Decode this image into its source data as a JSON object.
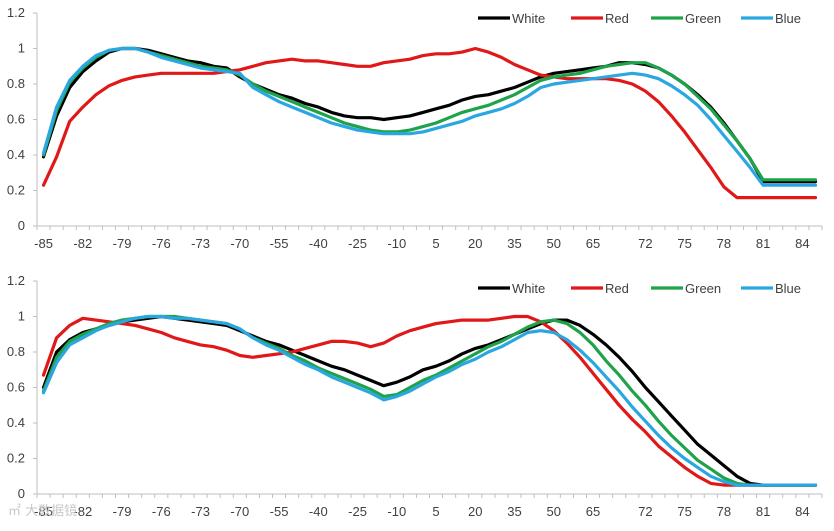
{
  "chart_data": [
    {
      "type": "line",
      "x": [
        "-85",
        "-84",
        "-83",
        "-82",
        "-81",
        "-80",
        "-79",
        "-78",
        "-77",
        "-76",
        "-75",
        "-74",
        "-73",
        "-72",
        "-71",
        "-70",
        "-65",
        "-60",
        "-55",
        "-50",
        "-45",
        "-40",
        "-35",
        "-30",
        "-25",
        "-20",
        "-15",
        "-10",
        "-5",
        "0",
        "5",
        "10",
        "15",
        "20",
        "25",
        "30",
        "35",
        "40",
        "45",
        "50",
        "55",
        "60",
        "65",
        "68",
        "70",
        "71",
        "72",
        "73",
        "74",
        "75",
        "76",
        "77",
        "78",
        "79",
        "80",
        "81",
        "82",
        "83",
        "84",
        "85"
      ],
      "tick_labels": [
        "-85",
        "-82",
        "-79",
        "-76",
        "-73",
        "-70",
        "-55",
        "-40",
        "-25",
        "-10",
        "5",
        "20",
        "35",
        "50",
        "65",
        "72",
        "75",
        "78",
        "81",
        "84"
      ],
      "ylim": [
        0,
        1.2
      ],
      "yticks": [
        "0",
        "0.2",
        "0.4",
        "0.6",
        "0.8",
        "1",
        "1.2"
      ],
      "series": [
        {
          "name": "White",
          "color": "#000000",
          "values": [
            0.39,
            0.62,
            0.78,
            0.87,
            0.93,
            0.98,
            1.0,
            1.0,
            0.99,
            0.97,
            0.95,
            0.93,
            0.92,
            0.9,
            0.89,
            0.84,
            0.8,
            0.77,
            0.74,
            0.72,
            0.69,
            0.67,
            0.64,
            0.62,
            0.61,
            0.61,
            0.6,
            0.61,
            0.62,
            0.64,
            0.66,
            0.68,
            0.71,
            0.73,
            0.74,
            0.76,
            0.78,
            0.81,
            0.84,
            0.86,
            0.87,
            0.88,
            0.89,
            0.9,
            0.92,
            0.92,
            0.91,
            0.89,
            0.85,
            0.8,
            0.74,
            0.67,
            0.58,
            0.48,
            0.38,
            0.25,
            0.25,
            0.25,
            0.25,
            0.25
          ]
        },
        {
          "name": "Red",
          "color": "#e01818",
          "values": [
            0.23,
            0.39,
            0.59,
            0.67,
            0.74,
            0.79,
            0.82,
            0.84,
            0.85,
            0.86,
            0.86,
            0.86,
            0.86,
            0.86,
            0.87,
            0.88,
            0.9,
            0.92,
            0.93,
            0.94,
            0.93,
            0.93,
            0.92,
            0.91,
            0.9,
            0.9,
            0.92,
            0.93,
            0.94,
            0.96,
            0.97,
            0.97,
            0.98,
            1.0,
            0.98,
            0.95,
            0.91,
            0.88,
            0.85,
            0.84,
            0.83,
            0.83,
            0.83,
            0.83,
            0.82,
            0.8,
            0.76,
            0.7,
            0.62,
            0.53,
            0.43,
            0.33,
            0.22,
            0.16,
            0.16,
            0.16,
            0.16,
            0.16,
            0.16,
            0.16
          ]
        },
        {
          "name": "Green",
          "color": "#1fa34a",
          "values": [
            0.4,
            0.65,
            0.81,
            0.89,
            0.95,
            0.99,
            1.0,
            1.0,
            0.98,
            0.96,
            0.94,
            0.92,
            0.9,
            0.89,
            0.88,
            0.85,
            0.8,
            0.76,
            0.73,
            0.7,
            0.67,
            0.64,
            0.61,
            0.58,
            0.56,
            0.54,
            0.53,
            0.53,
            0.54,
            0.56,
            0.58,
            0.61,
            0.64,
            0.66,
            0.68,
            0.71,
            0.74,
            0.78,
            0.82,
            0.84,
            0.85,
            0.86,
            0.88,
            0.9,
            0.91,
            0.92,
            0.92,
            0.89,
            0.85,
            0.8,
            0.73,
            0.66,
            0.57,
            0.48,
            0.38,
            0.26,
            0.26,
            0.26,
            0.26,
            0.26
          ]
        },
        {
          "name": "Blue",
          "color": "#2aa7e0",
          "values": [
            0.41,
            0.67,
            0.82,
            0.9,
            0.96,
            0.99,
            1.0,
            1.0,
            0.98,
            0.95,
            0.93,
            0.91,
            0.89,
            0.88,
            0.87,
            0.86,
            0.78,
            0.74,
            0.7,
            0.67,
            0.64,
            0.61,
            0.58,
            0.56,
            0.54,
            0.53,
            0.52,
            0.52,
            0.52,
            0.53,
            0.55,
            0.57,
            0.59,
            0.62,
            0.64,
            0.66,
            0.69,
            0.73,
            0.78,
            0.8,
            0.81,
            0.82,
            0.83,
            0.84,
            0.85,
            0.86,
            0.85,
            0.83,
            0.79,
            0.74,
            0.68,
            0.6,
            0.51,
            0.42,
            0.33,
            0.23,
            0.23,
            0.23,
            0.23,
            0.23
          ]
        }
      ],
      "legend_position": "top-right"
    },
    {
      "type": "line",
      "x": [
        "-85",
        "-84",
        "-83",
        "-82",
        "-81",
        "-80",
        "-79",
        "-78",
        "-77",
        "-76",
        "-75",
        "-74",
        "-73",
        "-72",
        "-71",
        "-70",
        "-65",
        "-60",
        "-55",
        "-50",
        "-45",
        "-40",
        "-35",
        "-30",
        "-25",
        "-20",
        "-15",
        "-10",
        "-5",
        "0",
        "5",
        "10",
        "15",
        "20",
        "25",
        "30",
        "35",
        "40",
        "45",
        "50",
        "55",
        "60",
        "65",
        "68",
        "70",
        "71",
        "72",
        "73",
        "74",
        "75",
        "76",
        "77",
        "78",
        "79",
        "80",
        "81",
        "82",
        "83",
        "84",
        "85"
      ],
      "tick_labels": [
        "-85",
        "-82",
        "-79",
        "-76",
        "-73",
        "-70",
        "-55",
        "-40",
        "-25",
        "-10",
        "5",
        "20",
        "35",
        "50",
        "65",
        "72",
        "75",
        "78",
        "81",
        "84"
      ],
      "ylim": [
        0,
        1.2
      ],
      "yticks": [
        "0",
        "0.2",
        "0.4",
        "0.6",
        "0.8",
        "1",
        "1.2"
      ],
      "series": [
        {
          "name": "White",
          "color": "#000000",
          "values": [
            0.6,
            0.8,
            0.87,
            0.91,
            0.93,
            0.95,
            0.97,
            0.98,
            0.99,
            1.0,
            0.99,
            0.98,
            0.97,
            0.96,
            0.95,
            0.92,
            0.89,
            0.86,
            0.84,
            0.81,
            0.78,
            0.75,
            0.72,
            0.7,
            0.67,
            0.64,
            0.61,
            0.63,
            0.66,
            0.7,
            0.72,
            0.75,
            0.79,
            0.82,
            0.84,
            0.87,
            0.9,
            0.93,
            0.96,
            0.98,
            0.98,
            0.95,
            0.9,
            0.84,
            0.77,
            0.69,
            0.6,
            0.52,
            0.44,
            0.36,
            0.28,
            0.22,
            0.16,
            0.1,
            0.06,
            0.05,
            0.05,
            0.05,
            0.05,
            0.05
          ]
        },
        {
          "name": "Red",
          "color": "#e01818",
          "values": [
            0.67,
            0.88,
            0.95,
            0.99,
            0.98,
            0.97,
            0.96,
            0.95,
            0.93,
            0.91,
            0.88,
            0.86,
            0.84,
            0.83,
            0.81,
            0.78,
            0.77,
            0.78,
            0.79,
            0.8,
            0.82,
            0.84,
            0.86,
            0.86,
            0.85,
            0.83,
            0.85,
            0.89,
            0.92,
            0.94,
            0.96,
            0.97,
            0.98,
            0.98,
            0.98,
            0.99,
            1.0,
            1.0,
            0.97,
            0.92,
            0.85,
            0.77,
            0.68,
            0.59,
            0.5,
            0.42,
            0.35,
            0.27,
            0.21,
            0.15,
            0.1,
            0.06,
            0.05,
            0.05,
            0.05,
            0.05,
            0.05,
            0.05,
            0.05,
            0.05
          ]
        },
        {
          "name": "Green",
          "color": "#1fa34a",
          "values": [
            0.58,
            0.77,
            0.86,
            0.9,
            0.93,
            0.96,
            0.98,
            0.99,
            1.0,
            1.0,
            1.0,
            0.99,
            0.98,
            0.97,
            0.96,
            0.93,
            0.88,
            0.85,
            0.82,
            0.78,
            0.75,
            0.71,
            0.68,
            0.65,
            0.62,
            0.59,
            0.55,
            0.56,
            0.6,
            0.64,
            0.67,
            0.71,
            0.75,
            0.79,
            0.83,
            0.86,
            0.9,
            0.94,
            0.97,
            0.98,
            0.96,
            0.91,
            0.84,
            0.75,
            0.67,
            0.58,
            0.5,
            0.41,
            0.33,
            0.26,
            0.19,
            0.14,
            0.09,
            0.06,
            0.05,
            0.05,
            0.05,
            0.05,
            0.05,
            0.05
          ]
        },
        {
          "name": "Blue",
          "color": "#2aa7e0",
          "values": [
            0.57,
            0.74,
            0.84,
            0.88,
            0.92,
            0.95,
            0.97,
            0.99,
            1.0,
            1.0,
            0.99,
            0.99,
            0.98,
            0.97,
            0.96,
            0.93,
            0.88,
            0.84,
            0.81,
            0.77,
            0.73,
            0.7,
            0.66,
            0.63,
            0.6,
            0.57,
            0.53,
            0.55,
            0.58,
            0.62,
            0.66,
            0.69,
            0.73,
            0.76,
            0.8,
            0.83,
            0.87,
            0.91,
            0.92,
            0.91,
            0.87,
            0.81,
            0.74,
            0.66,
            0.58,
            0.49,
            0.41,
            0.33,
            0.26,
            0.2,
            0.15,
            0.1,
            0.07,
            0.05,
            0.05,
            0.05,
            0.05,
            0.05,
            0.05,
            0.05
          ]
        }
      ],
      "legend_position": "top-right"
    }
  ],
  "watermark": "㎡ 大数据镜"
}
